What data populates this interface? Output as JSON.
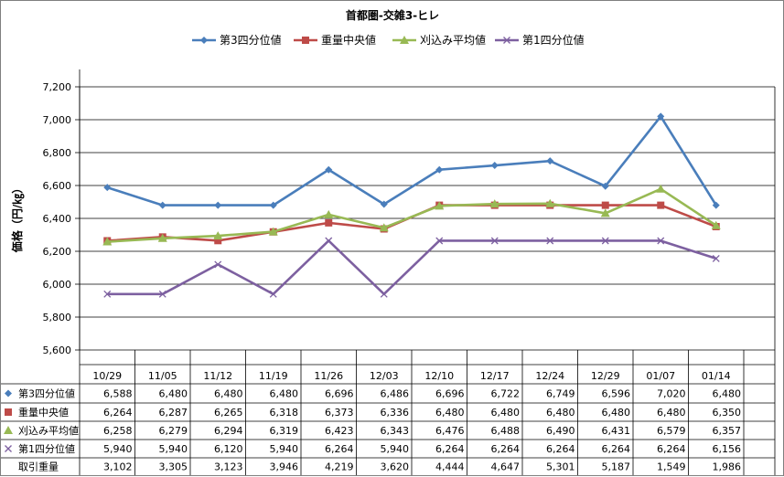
{
  "chart_data": {
    "type": "line",
    "title": "首都圏-交雑3-ヒレ",
    "ylabel": "価格（円/㎏）",
    "xlabel": "",
    "ylim": [
      5600,
      7200
    ],
    "y_tick_step": 200,
    "y_tick_labels": [
      "5,600",
      "5,800",
      "6,000",
      "6,200",
      "6,400",
      "6,600",
      "6,800",
      "7,000",
      "7,200"
    ],
    "grid": "horizontal",
    "legend_position": "top",
    "categories": [
      "10/29",
      "11/05",
      "11/12",
      "11/19",
      "11/26",
      "12/03",
      "12/10",
      "12/17",
      "12/24",
      "12/29",
      "01/07",
      "01/14"
    ],
    "series": [
      {
        "name": "第3四分位値",
        "color": "#4a7ebb",
        "marker": "diamond",
        "values": [
          6588,
          6480,
          6480,
          6480,
          6696,
          6486,
          6696,
          6722,
          6749,
          6596,
          7020,
          6480
        ],
        "labels": [
          "6,588",
          "6,480",
          "6,480",
          "6,480",
          "6,696",
          "6,486",
          "6,696",
          "6,722",
          "6,749",
          "6,596",
          "7,020",
          "6,480"
        ]
      },
      {
        "name": "重量中央値",
        "color": "#be4b48",
        "marker": "square",
        "values": [
          6264,
          6287,
          6265,
          6318,
          6373,
          6336,
          6480,
          6480,
          6480,
          6480,
          6480,
          6350
        ],
        "labels": [
          "6,264",
          "6,287",
          "6,265",
          "6,318",
          "6,373",
          "6,336",
          "6,480",
          "6,480",
          "6,480",
          "6,480",
          "6,480",
          "6,350"
        ]
      },
      {
        "name": "刈込み平均値",
        "color": "#98b954",
        "marker": "triangle",
        "values": [
          6258,
          6279,
          6294,
          6319,
          6423,
          6343,
          6476,
          6488,
          6490,
          6431,
          6579,
          6357
        ],
        "labels": [
          "6,258",
          "6,279",
          "6,294",
          "6,319",
          "6,423",
          "6,343",
          "6,476",
          "6,488",
          "6,490",
          "6,431",
          "6,579",
          "6,357"
        ]
      },
      {
        "name": "第1四分位値",
        "color": "#7d60a0",
        "marker": "x",
        "values": [
          5940,
          5940,
          6120,
          5940,
          6264,
          5940,
          6264,
          6264,
          6264,
          6264,
          6264,
          6156
        ],
        "labels": [
          "5,940",
          "5,940",
          "6,120",
          "5,940",
          "6,264",
          "5,940",
          "6,264",
          "6,264",
          "6,264",
          "6,264",
          "6,264",
          "6,156"
        ]
      }
    ],
    "extra_table_row": {
      "name": "取引重量",
      "values": [
        3102,
        3305,
        3123,
        3946,
        4219,
        3620,
        4444,
        4647,
        5301,
        5187,
        1549,
        1986
      ],
      "labels": [
        "3,102",
        "3,305",
        "3,123",
        "3,946",
        "4,219",
        "3,620",
        "4,444",
        "4,647",
        "5,301",
        "5,187",
        "1,549",
        "1,986"
      ]
    }
  }
}
